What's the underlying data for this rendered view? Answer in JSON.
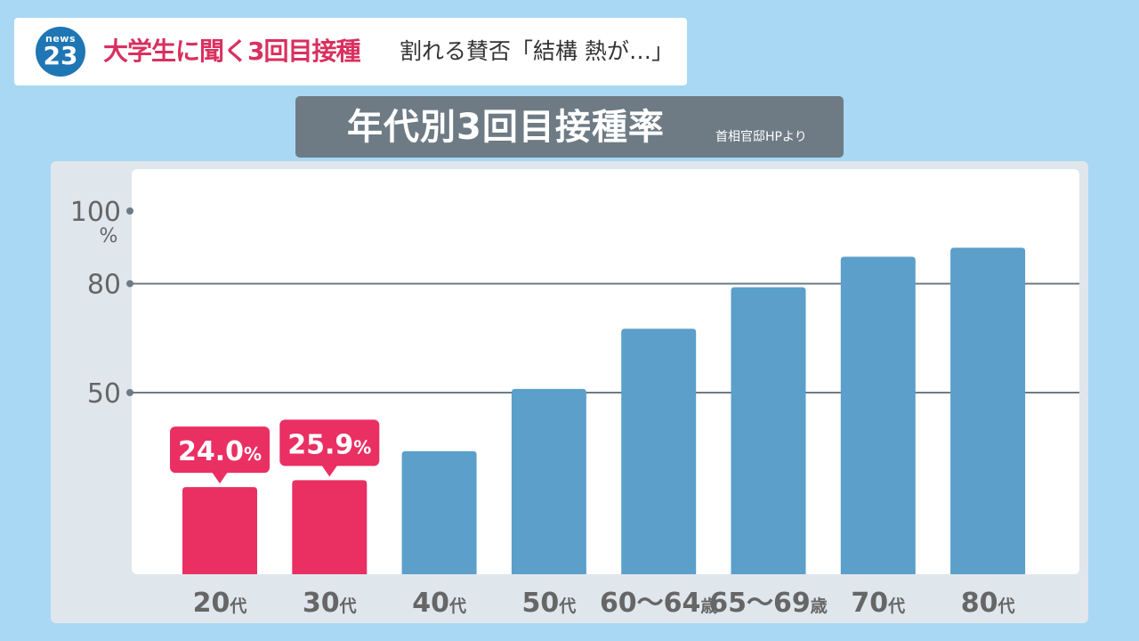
{
  "header": {
    "logo_small": "news",
    "logo_big": "23",
    "headline": "大学生に聞く3回目接種",
    "subline": "割れる賛否「結構 熱が…」"
  },
  "title": {
    "main": "年代別3回目接種率",
    "source": "首相官邸HPより"
  },
  "colors": {
    "background": "#a8d8f4",
    "highlight": "#ea2f63",
    "bar": "#5b9fca",
    "title_banner": "#6e7b85",
    "brand": "#1f76b4",
    "headline": "#d9305f"
  },
  "chart_data": {
    "type": "bar",
    "categories": [
      {
        "num": "20",
        "suffix": "代"
      },
      {
        "num": "30",
        "suffix": "代"
      },
      {
        "num": "40",
        "suffix": "代"
      },
      {
        "num": "50",
        "suffix": "代"
      },
      {
        "num": "60～64",
        "suffix": "歳"
      },
      {
        "num": "65～69",
        "suffix": "歳"
      },
      {
        "num": "70",
        "suffix": "代"
      },
      {
        "num": "80",
        "suffix": "代"
      }
    ],
    "values": [
      24.0,
      25.9,
      33.9,
      51.0,
      67.6,
      79.0,
      87.4,
      89.9
    ],
    "highlighted": [
      true,
      true,
      false,
      false,
      false,
      false,
      false,
      false
    ],
    "callouts": [
      {
        "index": 0,
        "value": "24.0",
        "unit": "%"
      },
      {
        "index": 1,
        "value": "25.9",
        "unit": "%"
      }
    ],
    "y_ticks": [
      {
        "value": 100,
        "label": "100"
      },
      {
        "value": 80,
        "label": "80"
      },
      {
        "value": 50,
        "label": "50"
      }
    ],
    "y_unit": "%",
    "ylim": [
      0,
      100
    ],
    "gridlines": [
      80,
      50
    ]
  }
}
